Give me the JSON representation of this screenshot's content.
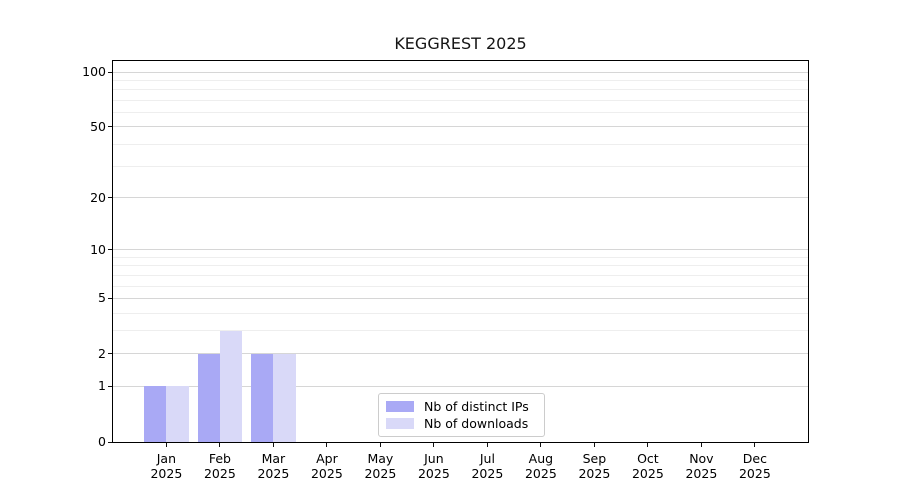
{
  "title": "KEGGREST 2025",
  "legend": {
    "items": [
      {
        "label": "Nb of distinct IPs",
        "series_key": "distinct_ips"
      },
      {
        "label": "Nb of downloads",
        "series_key": "downloads"
      }
    ]
  },
  "colors": {
    "distinct_ips": "#a9a9f5",
    "downloads": "#d9d9f8",
    "grid_major": "#d6d6d6",
    "grid_minor": "#eeeeee",
    "axis_spine": "#000000",
    "tick_text": "#000000"
  },
  "y_axis": {
    "scale": "log1p",
    "axis_max": 115,
    "major_ticks": [
      100,
      50,
      20,
      10,
      5,
      2,
      1,
      0
    ],
    "minor_gridlines": [
      3,
      4,
      6,
      7,
      8,
      9,
      30,
      40,
      60,
      70,
      80,
      90
    ]
  },
  "x_axis": {
    "months": [
      "Jan",
      "Feb",
      "Mar",
      "Apr",
      "May",
      "Jun",
      "Jul",
      "Aug",
      "Sep",
      "Oct",
      "Nov",
      "Dec"
    ],
    "year": "2025"
  },
  "chart_data": {
    "type": "bar",
    "title": "KEGGREST 2025",
    "categories": [
      "Jan 2025",
      "Feb 2025",
      "Mar 2025",
      "Apr 2025",
      "May 2025",
      "Jun 2025",
      "Jul 2025",
      "Aug 2025",
      "Sep 2025",
      "Oct 2025",
      "Nov 2025",
      "Dec 2025"
    ],
    "series": [
      {
        "name": "Nb of distinct IPs",
        "key": "distinct_ips",
        "values": [
          1,
          2,
          2,
          0,
          0,
          0,
          0,
          0,
          0,
          0,
          0,
          0
        ]
      },
      {
        "name": "Nb of downloads",
        "key": "downloads",
        "values": [
          1,
          3,
          2,
          0,
          0,
          0,
          0,
          0,
          0,
          0,
          0,
          0
        ]
      }
    ],
    "xlabel": "",
    "ylabel": "",
    "yscale": "log1p",
    "ylim": [
      0,
      115
    ],
    "yticks": [
      0,
      1,
      2,
      5,
      10,
      20,
      50,
      100
    ],
    "grid": "horizontal",
    "legend_position": "lower center inside"
  }
}
